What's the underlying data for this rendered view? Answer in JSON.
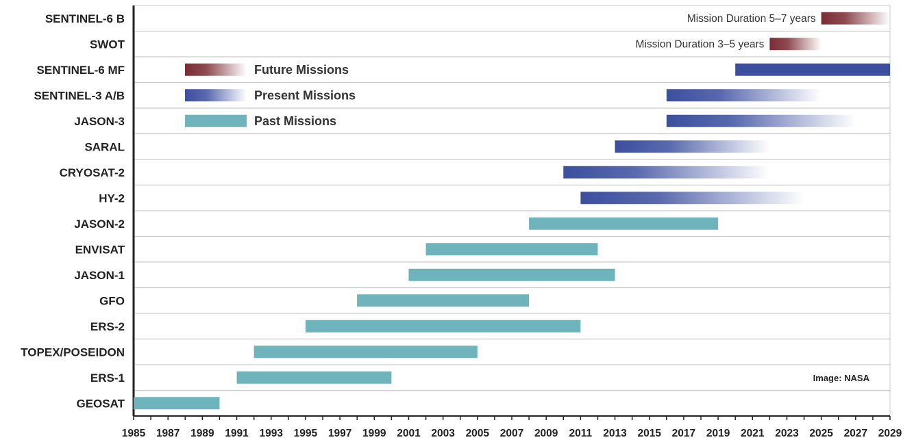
{
  "chart_data": {
    "type": "bar",
    "orientation": "horizontal",
    "x_axis": {
      "ticks": [
        "1985",
        "1987",
        "1989",
        "1991",
        "1993",
        "1995",
        "1997",
        "1999",
        "2001",
        "2003",
        "2005",
        "2007",
        "2009",
        "2011",
        "2013",
        "2015",
        "2017",
        "2019",
        "2021",
        "2023",
        "2025",
        "2027",
        "2029"
      ],
      "range": [
        1985,
        2029
      ]
    },
    "colors": {
      "past": "#6fb3bd",
      "present": "#3c4f9f",
      "future": "#7a2c33",
      "grid": "#c9c9c9",
      "axis": "#222222"
    },
    "missions": [
      {
        "name": "SENTINEL-6 B",
        "category": "future",
        "start": 2025,
        "end": 2029,
        "fade": true
      },
      {
        "name": "SWOT",
        "category": "future",
        "start": 2022,
        "end": 2025,
        "fade": true
      },
      {
        "name": "SENTINEL-6 MF",
        "category": "present",
        "start": 2020,
        "end": 2029,
        "fade": false
      },
      {
        "name": "SENTINEL-3 A/B",
        "category": "present",
        "start": 2016,
        "end": 2025,
        "fade": true
      },
      {
        "name": "JASON-3",
        "category": "present",
        "start": 2016,
        "end": 2027,
        "fade": true
      },
      {
        "name": "SARAL",
        "category": "present",
        "start": 2013,
        "end": 2022,
        "fade": true
      },
      {
        "name": "CRYOSAT-2",
        "category": "present",
        "start": 2010,
        "end": 2022,
        "fade": true
      },
      {
        "name": "HY-2",
        "category": "present",
        "start": 2011,
        "end": 2024,
        "fade": true
      },
      {
        "name": "JASON-2",
        "category": "past",
        "start": 2008,
        "end": 2019,
        "fade": false
      },
      {
        "name": "ENVISAT",
        "category": "past",
        "start": 2002,
        "end": 2012,
        "fade": false
      },
      {
        "name": "JASON-1",
        "category": "past",
        "start": 2001,
        "end": 2013,
        "fade": false
      },
      {
        "name": "GFO",
        "category": "past",
        "start": 1998,
        "end": 2008,
        "fade": false
      },
      {
        "name": "ERS-2",
        "category": "past",
        "start": 1995,
        "end": 2011,
        "fade": false
      },
      {
        "name": "TOPEX/POSEIDON",
        "category": "past",
        "start": 1992,
        "end": 2005,
        "fade": false
      },
      {
        "name": "ERS-1",
        "category": "past",
        "start": 1991,
        "end": 2000,
        "fade": false
      },
      {
        "name": "GEOSAT",
        "category": "past",
        "start": 1985,
        "end": 1990,
        "fade": false
      }
    ],
    "legend": [
      {
        "label": "Future Missions",
        "category": "future"
      },
      {
        "label": "Present Missions",
        "category": "present"
      },
      {
        "label": "Past Missions",
        "category": "past"
      }
    ],
    "annotations": [
      {
        "text": "Mission Duration 5–7 years",
        "row": "SENTINEL-6 B"
      },
      {
        "text": "Mission Duration 3–5 years",
        "row": "SWOT"
      }
    ],
    "credit": "Image: NASA"
  }
}
